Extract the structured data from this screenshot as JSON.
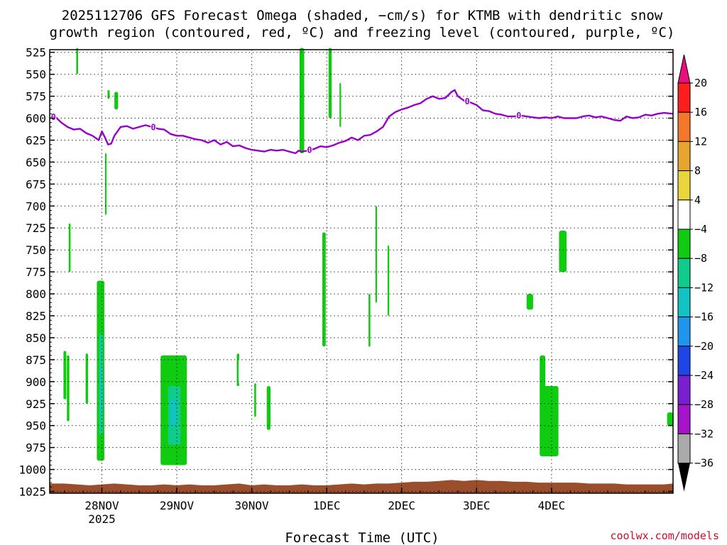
{
  "chart_data": {
    "type": "heatmap",
    "title_lines": [
      "2025112706 GFS Forecast Omega (shaded, −cm/s) for KTMB with dendritic snow",
      "growth region (contoured, red, ºC) and freezing level (contoured, purple, ºC)"
    ],
    "xlabel": "Forecast Time (UTC)",
    "credit": "coolwx.com/models",
    "x_axis": {
      "range_hours": [
        -16.7,
        182.9
      ],
      "ticks": [
        {
          "hour": 0,
          "label": "28NOV",
          "sublabel": "2025"
        },
        {
          "hour": 24,
          "label": "29NOV"
        },
        {
          "hour": 48,
          "label": "30NOV"
        },
        {
          "hour": 72,
          "label": "1DEC"
        },
        {
          "hour": 96,
          "label": "2DEC"
        },
        {
          "hour": 120,
          "label": "3DEC"
        },
        {
          "hour": 144,
          "label": "4DEC"
        }
      ]
    },
    "y_axis": {
      "range_hpa": [
        522,
        1027
      ],
      "inverted": true,
      "ticks": [
        525,
        550,
        575,
        600,
        625,
        650,
        675,
        700,
        725,
        750,
        775,
        800,
        825,
        850,
        875,
        900,
        925,
        950,
        975,
        1000,
        1025
      ]
    },
    "grid": true,
    "colorbar": {
      "labels": [
        "20",
        "16",
        "12",
        "8",
        "4",
        "−4",
        "−8",
        "−12",
        "−16",
        "−20",
        "−24",
        "−28",
        "−32",
        "−36"
      ],
      "colors": [
        "#ff1e1e",
        "#f5782a",
        "#e8a52e",
        "#e8d63a",
        "#ffffff",
        "#10cc10",
        "#10cc8c",
        "#10c4c4",
        "#1e96ee",
        "#1e46e6",
        "#7a1ed2",
        "#a514c8",
        "#aaaaaa"
      ],
      "top_arrow_color": "#e8107a",
      "bottom_arrow_color": "#000000"
    },
    "freezing_level": {
      "color": "#9900cc",
      "label": "0",
      "label_hours": [
        -15.5,
        16.5,
        66.5,
        117,
        133.5
      ],
      "hours": [
        -16.7,
        -15,
        -13,
        -11,
        -9,
        -7,
        -5,
        -3,
        -1,
        0,
        1,
        2,
        3,
        4,
        6,
        8,
        10,
        12,
        14,
        16,
        18,
        20,
        22,
        24,
        26,
        28,
        30,
        32,
        34,
        36,
        38,
        40,
        42,
        44,
        46,
        48,
        50,
        52,
        54,
        56,
        58,
        60,
        62,
        63,
        64,
        66,
        68,
        70,
        72,
        74,
        76,
        78,
        80,
        82,
        84,
        86,
        88,
        90,
        92,
        94,
        96,
        98,
        100,
        102,
        104,
        106,
        108,
        110,
        112,
        113,
        114,
        116,
        118,
        120,
        122,
        124,
        126,
        128,
        130,
        132,
        134,
        136,
        138,
        140,
        142,
        144,
        146,
        148,
        150,
        152,
        154,
        156,
        158,
        160,
        162,
        164,
        166,
        168,
        170,
        172,
        174,
        176,
        178,
        180,
        182.9
      ],
      "pressures": [
        600,
        598,
        605,
        610,
        613,
        612,
        617,
        620,
        625,
        615,
        622,
        630,
        629,
        620,
        610,
        609,
        612,
        610,
        608,
        610,
        612,
        613,
        618,
        620,
        620,
        622,
        624,
        625,
        628,
        625,
        630,
        627,
        632,
        631,
        634,
        636,
        637,
        638,
        636,
        637,
        636,
        638,
        640,
        637,
        638,
        637,
        635,
        632,
        633,
        631,
        628,
        626,
        622,
        625,
        620,
        619,
        615,
        610,
        598,
        593,
        590,
        588,
        585,
        583,
        578,
        575,
        578,
        577,
        570,
        568,
        575,
        580,
        582,
        585,
        591,
        592,
        595,
        596,
        598,
        598,
        597,
        598,
        599,
        600,
        599,
        600,
        598,
        600,
        600,
        600,
        598,
        597,
        599,
        598,
        600,
        602,
        603,
        598,
        600,
        599,
        596,
        597,
        595,
        594,
        595
      ]
    },
    "omega_features": [
      {
        "class": 5,
        "h0": -12.3,
        "h1": -11.4,
        "p0": 865,
        "p1": 920
      },
      {
        "class": 5,
        "h0": -11.2,
        "h1": -10.4,
        "p0": 870,
        "p1": 945
      },
      {
        "class": 5,
        "h0": -10.6,
        "h1": -10.0,
        "p0": 720,
        "p1": 775
      },
      {
        "class": 5,
        "h0": -5.2,
        "h1": -4.4,
        "p0": 868,
        "p1": 925
      },
      {
        "class": 5,
        "h0": -1.6,
        "h1": 0.8,
        "p0": 785,
        "p1": 990
      },
      {
        "class": 6,
        "h0": -0.9,
        "h1": 0.4,
        "p0": 845,
        "p1": 960
      },
      {
        "class": 7,
        "h0": -0.6,
        "h1": 0.2,
        "p0": 885,
        "p1": 935
      },
      {
        "class": 5,
        "h0": 1.0,
        "h1": 1.5,
        "p0": 640,
        "p1": 710
      },
      {
        "class": 5,
        "h0": 4.0,
        "h1": 5.2,
        "p0": 570,
        "p1": 590
      },
      {
        "class": 5,
        "h0": 1.8,
        "h1": 2.5,
        "p0": 568,
        "p1": 578
      },
      {
        "class": 5,
        "h0": -8.2,
        "h1": -7.6,
        "p0": 520,
        "p1": 550
      },
      {
        "class": 5,
        "h0": 18.8,
        "h1": 27.2,
        "p0": 870,
        "p1": 995
      },
      {
        "class": 6,
        "h0": 21.2,
        "h1": 25.2,
        "p0": 905,
        "p1": 972
      },
      {
        "class": 7,
        "h0": 22.0,
        "h1": 24.0,
        "p0": 920,
        "p1": 950
      },
      {
        "class": 5,
        "h0": 43.2,
        "h1": 44.0,
        "p0": 868,
        "p1": 905
      },
      {
        "class": 5,
        "h0": 48.8,
        "h1": 49.4,
        "p0": 902,
        "p1": 940
      },
      {
        "class": 5,
        "h0": 52.8,
        "h1": 54.0,
        "p0": 905,
        "p1": 955
      },
      {
        "class": 5,
        "h0": 63.3,
        "h1": 64.8,
        "p0": 520,
        "p1": 640
      },
      {
        "class": 5,
        "h0": 72.6,
        "h1": 73.6,
        "p0": 520,
        "p1": 600
      },
      {
        "class": 5,
        "h0": 76.1,
        "h1": 76.6,
        "p0": 560,
        "p1": 610
      },
      {
        "class": 5,
        "h0": 70.6,
        "h1": 71.7,
        "p0": 730,
        "p1": 860
      },
      {
        "class": 5,
        "h0": 91.5,
        "h1": 92.0,
        "p0": 745,
        "p1": 825
      },
      {
        "class": 5,
        "h0": 87.6,
        "h1": 88.1,
        "p0": 700,
        "p1": 810
      },
      {
        "class": 5,
        "h0": 85.4,
        "h1": 86.0,
        "p0": 800,
        "p1": 860
      },
      {
        "class": 5,
        "h0": 136.0,
        "h1": 138.1,
        "p0": 800,
        "p1": 818
      },
      {
        "class": 5,
        "h0": 146.4,
        "h1": 148.8,
        "p0": 728,
        "p1": 775
      },
      {
        "class": 5,
        "h0": 140.2,
        "h1": 142.0,
        "p0": 870,
        "p1": 985
      },
      {
        "class": 5,
        "h0": 140.9,
        "h1": 146.2,
        "p0": 905,
        "p1": 985
      },
      {
        "class": 5,
        "h0": 181.0,
        "h1": 182.9,
        "p0": 935,
        "p1": 950
      },
      {
        "class": 4,
        "h0": 80.5,
        "h1": 82.3,
        "p0": 528,
        "p1": 760
      },
      {
        "class": 4,
        "h0": 81.3,
        "h1": 82.0,
        "p0": 590,
        "p1": 790
      },
      {
        "class": 4,
        "h0": 84.2,
        "h1": 84.9,
        "p0": 590,
        "p1": 890
      },
      {
        "class": 4,
        "h0": 96.0,
        "h1": 96.6,
        "p0": 560,
        "p1": 720
      },
      {
        "class": 4,
        "h0": 107.8,
        "h1": 110.0,
        "p0": 680,
        "p1": 875
      },
      {
        "class": 4,
        "h0": 103.8,
        "h1": 104.4,
        "p0": 775,
        "p1": 830
      },
      {
        "class": 4,
        "h0": 141.0,
        "h1": 143.2,
        "p0": 658,
        "p1": 712
      },
      {
        "class": 4,
        "h0": 144.6,
        "h1": 147.2,
        "p0": 778,
        "p1": 858
      },
      {
        "class": 4,
        "h0": 83.9,
        "h1": 84.4,
        "p0": 830,
        "p1": 880
      },
      {
        "class": 4,
        "h0": 87.4,
        "h1": 87.9,
        "p0": 840,
        "p1": 900
      },
      {
        "class": 4,
        "h0": 86.9,
        "h1": 87.4,
        "p0": 860,
        "p1": 905
      },
      {
        "class": 4,
        "h0": 43.8,
        "h1": 45.4,
        "p0": 873,
        "p1": 903
      },
      {
        "class": 4,
        "h0": 45.9,
        "h1": 46.9,
        "p0": 735,
        "p1": 795
      },
      {
        "class": 4,
        "h0": 48.3,
        "h1": 48.7,
        "p0": 755,
        "p1": 810
      },
      {
        "class": 4,
        "h0": 40.7,
        "h1": 41.1,
        "p0": 790,
        "p1": 840
      },
      {
        "class": 4,
        "h0": 16.5,
        "h1": 17.0,
        "p0": 525,
        "p1": 610
      },
      {
        "class": 4,
        "h0": -14.0,
        "h1": -13.6,
        "p0": 660,
        "p1": 690
      },
      {
        "class": 4,
        "h0": -0.2,
        "h1": 0.2,
        "p0": 665,
        "p1": 685
      },
      {
        "class": 4,
        "h0": 25.7,
        "h1": 26.1,
        "p0": 808,
        "p1": 825
      },
      {
        "class": 4,
        "h0": 28.9,
        "h1": 29.2,
        "p0": 880,
        "p1": 905
      },
      {
        "class": 4,
        "h0": 68.9,
        "h1": 69.2,
        "p0": 820,
        "p1": 875
      },
      {
        "class": 4,
        "h0": 68.1,
        "h1": 68.5,
        "p0": 905,
        "p1": 945
      }
    ],
    "surface": {
      "color": "#9a4e2c",
      "hours": [
        -16.7,
        -12,
        -8,
        -4,
        0,
        4,
        8,
        12,
        16,
        20,
        24,
        28,
        32,
        36,
        40,
        44,
        48,
        52,
        56,
        60,
        64,
        68,
        72,
        76,
        80,
        84,
        88,
        92,
        96,
        100,
        104,
        108,
        112,
        116,
        120,
        124,
        128,
        132,
        136,
        140,
        144,
        148,
        152,
        156,
        160,
        164,
        168,
        172,
        176,
        180,
        182.9
      ],
      "pressures": [
        1016,
        1016,
        1017,
        1018,
        1017,
        1016,
        1017,
        1018,
        1018,
        1017,
        1018,
        1017,
        1018,
        1018,
        1017,
        1016,
        1018,
        1017,
        1018,
        1018,
        1017,
        1018,
        1018,
        1017,
        1016,
        1017,
        1016,
        1016,
        1015,
        1014,
        1014,
        1013,
        1012,
        1013,
        1012,
        1013,
        1013,
        1014,
        1014,
        1015,
        1015,
        1015,
        1015,
        1016,
        1016,
        1016,
        1017,
        1017,
        1017,
        1017,
        1016
      ]
    }
  }
}
